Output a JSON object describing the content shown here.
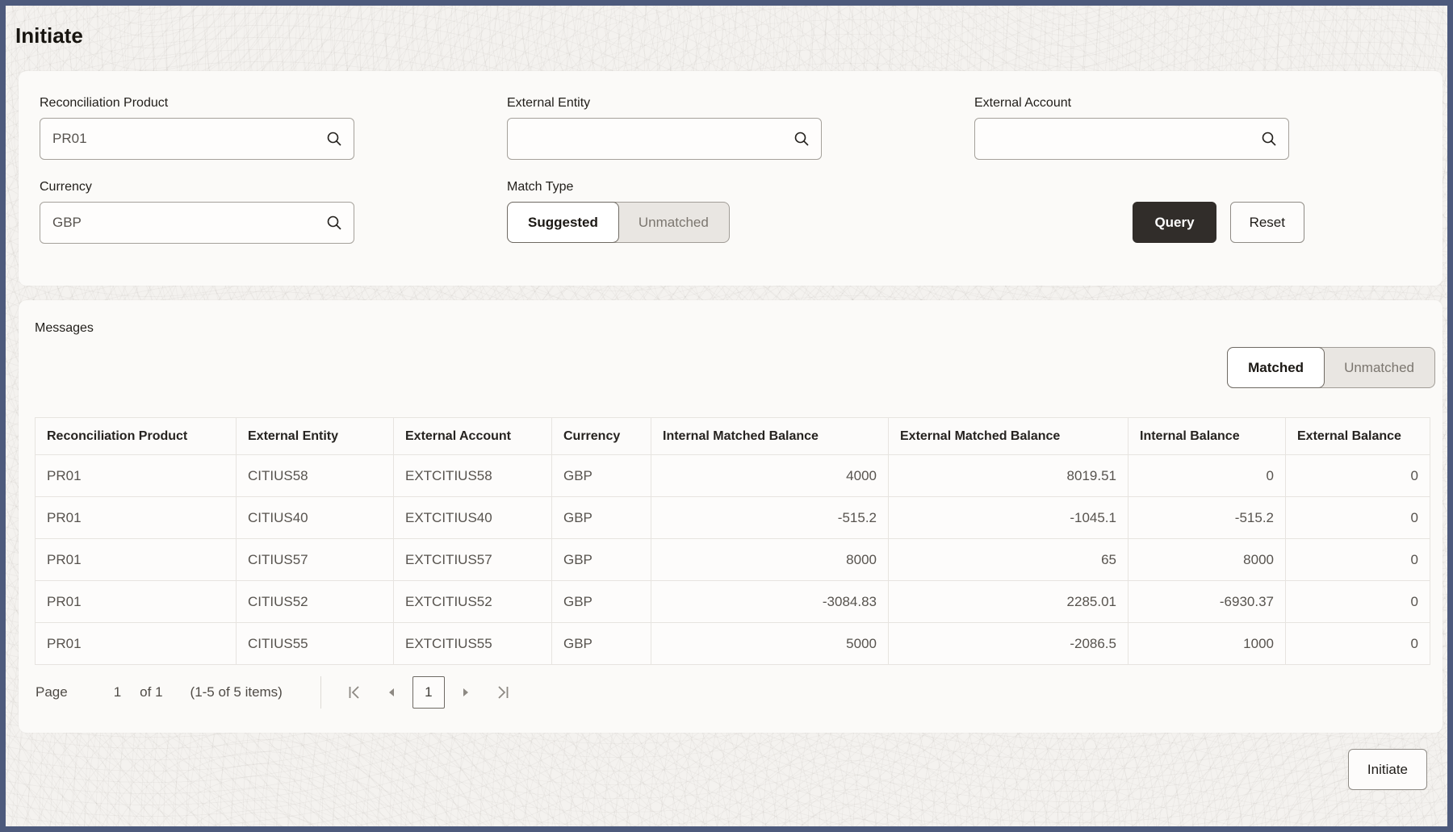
{
  "window": {
    "title": "Initiate"
  },
  "colors": {
    "frame_border": "#4d5a7c",
    "primary_button_bg": "#312d2a",
    "card_bg": "#fbfaf8",
    "toggle_unselected_bg": "#e9e6e2"
  },
  "icons": {
    "search": "magnifier-glyph",
    "first_page": "chevron-left-with-bar",
    "prev_page": "solid-triangle-left",
    "next_page": "solid-triangle-right",
    "last_page": "chevron-right-with-bar"
  },
  "filters": {
    "fields": [
      {
        "label": "Reconciliation Product",
        "value": "PR01"
      },
      {
        "label": "External Entity",
        "value": ""
      },
      {
        "label": "External Account",
        "value": ""
      },
      {
        "label": "Currency",
        "value": "GBP"
      }
    ],
    "match_type": {
      "label": "Match Type",
      "options": [
        "Suggested",
        "Unmatched"
      ],
      "selected": "Suggested"
    },
    "query_label": "Query",
    "reset_label": "Reset"
  },
  "messages": {
    "title": "Messages",
    "toggle": {
      "options": [
        "Matched",
        "Unmatched"
      ],
      "selected": "Matched"
    },
    "table": {
      "columns": [
        "Reconciliation Product",
        "External Entity",
        "External Account",
        "Currency",
        "Internal Matched Balance",
        "External Matched Balance",
        "Internal Balance",
        "External Balance"
      ],
      "numeric_columns_from_index": 4,
      "rows": [
        [
          "PR01",
          "CITIUS58",
          "EXTCITIUS58",
          "GBP",
          "4000",
          "8019.51",
          "0",
          "0"
        ],
        [
          "PR01",
          "CITIUS40",
          "EXTCITIUS40",
          "GBP",
          "-515.2",
          "-1045.1",
          "-515.2",
          "0"
        ],
        [
          "PR01",
          "CITIUS57",
          "EXTCITIUS57",
          "GBP",
          "8000",
          "65",
          "8000",
          "0"
        ],
        [
          "PR01",
          "CITIUS52",
          "EXTCITIUS52",
          "GBP",
          "-3084.83",
          "2285.01",
          "-6930.37",
          "0"
        ],
        [
          "PR01",
          "CITIUS55",
          "EXTCITIUS55",
          "GBP",
          "5000",
          "-2086.5",
          "1000",
          "0"
        ]
      ]
    },
    "pagination": {
      "page_label": "Page",
      "current_page": "1",
      "of_label": "of 1",
      "items_label": "(1-5 of 5 items)"
    }
  },
  "footer": {
    "initiate_label": "Initiate"
  }
}
